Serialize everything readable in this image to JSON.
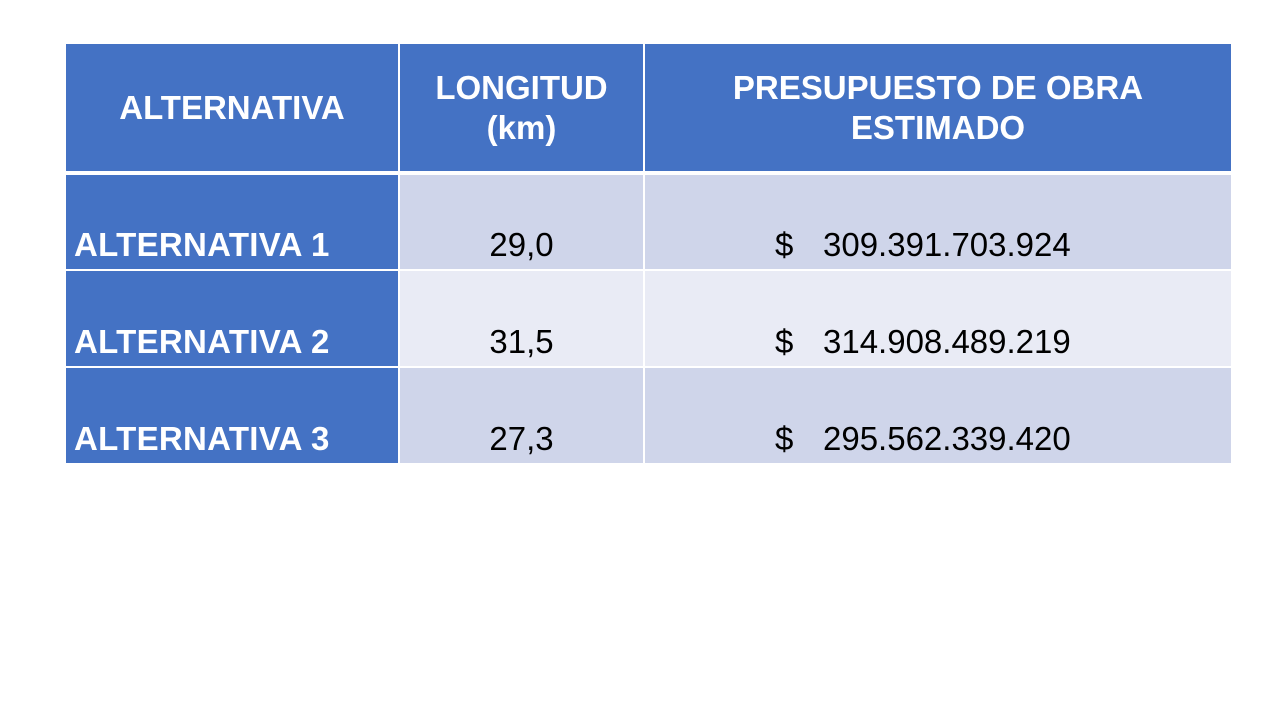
{
  "table": {
    "headers": {
      "alternative": "ALTERNATIVA",
      "length_line1": "LONGITUD",
      "length_line2": "(km)",
      "budget_line1": "PRESUPUESTO DE OBRA",
      "budget_line2": "ESTIMADO"
    },
    "rows": [
      {
        "label": "ALTERNATIVA 1",
        "length": "29,0",
        "currency": "$",
        "budget": "309.391.703.924"
      },
      {
        "label": "ALTERNATIVA 2",
        "length": "31,5",
        "currency": "$",
        "budget": "314.908.489.219"
      },
      {
        "label": "ALTERNATIVA 3",
        "length": "27,3",
        "currency": "$",
        "budget": "295.562.339.420"
      }
    ],
    "colors": {
      "header_bg": "#4472c4",
      "band_dark": "#cfd5ea",
      "band_light": "#e9ebf5"
    }
  }
}
